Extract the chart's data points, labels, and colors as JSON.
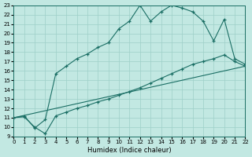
{
  "xlabel": "Humidex (Indice chaleur)",
  "bg_color": "#c2e8e2",
  "line_color": "#1a6e64",
  "grid_color": "#9ecfc8",
  "xlim": [
    0,
    22
  ],
  "ylim": [
    9,
    23
  ],
  "xticks": [
    0,
    1,
    2,
    3,
    4,
    5,
    6,
    7,
    8,
    9,
    10,
    11,
    12,
    13,
    14,
    15,
    16,
    17,
    18,
    19,
    20,
    21,
    22
  ],
  "yticks": [
    9,
    10,
    11,
    12,
    13,
    14,
    15,
    16,
    17,
    18,
    19,
    20,
    21,
    22,
    23
  ],
  "upper_x": [
    0,
    1,
    2,
    3,
    4,
    5,
    6,
    7,
    8,
    9,
    10,
    11,
    12,
    13,
    14,
    15,
    16,
    17,
    18,
    19,
    20,
    21,
    22
  ],
  "upper_y": [
    11,
    11.2,
    9.9,
    10.8,
    15.7,
    16.5,
    17.3,
    17.8,
    18.5,
    19.0,
    20.5,
    21.3,
    23.0,
    21.3,
    22.3,
    23.0,
    22.7,
    22.3,
    21.3,
    19.2,
    21.5,
    17.3,
    16.7
  ],
  "lower_x": [
    0,
    1,
    2,
    3,
    4,
    5,
    6,
    7,
    8,
    9,
    10,
    11,
    12,
    13,
    14,
    15,
    16,
    17,
    18,
    19,
    20,
    21,
    22
  ],
  "lower_y": [
    11,
    11.1,
    10.0,
    9.3,
    11.2,
    11.6,
    12.0,
    12.3,
    12.7,
    13.0,
    13.4,
    13.8,
    14.2,
    14.7,
    15.2,
    15.7,
    16.2,
    16.7,
    17.0,
    17.3,
    17.7,
    17.0,
    16.5
  ],
  "line_x": [
    0,
    22
  ],
  "line_y": [
    11.0,
    16.5
  ]
}
